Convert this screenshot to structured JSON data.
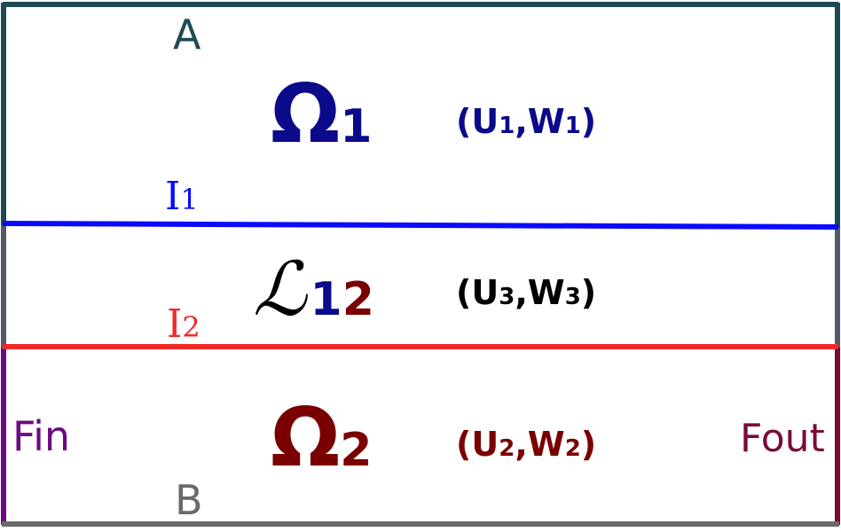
{
  "labels": {
    "top_boundary": "A",
    "bottom_boundary": "B",
    "inflow": "Fin",
    "outflow": "Fout",
    "interface_1": {
      "base": "I",
      "sub": "1"
    },
    "interface_2": {
      "base": "I",
      "sub": "2"
    }
  },
  "regions": {
    "omega1": {
      "symbol": "Ω",
      "sub": "1",
      "pair": {
        "open": "(",
        "u": "U",
        "u_sub": "1",
        "sep": ",",
        "w": "W",
        "w_sub": "1",
        "close": ")"
      }
    },
    "layer12": {
      "symbol": "ℒ",
      "sub_a": "1",
      "sub_b": "2",
      "pair": {
        "open": "(",
        "u": "U",
        "u_sub": "3",
        "sep": ",",
        "w": "W",
        "w_sub": "3",
        "close": ")"
      }
    },
    "omega2": {
      "symbol": "Ω",
      "sub": "2",
      "pair": {
        "open": "(",
        "u": "U",
        "u_sub": "2",
        "sep": ",",
        "w": "W",
        "w_sub": "2",
        "close": ")"
      }
    }
  },
  "colors": {
    "top_border": "#1e4a55",
    "mid_border": "#555b66",
    "bottom_border": "#6a6a6a",
    "interface_1": "#0a0aff",
    "interface_2": "#f02828",
    "fin_side": "#6a0a80",
    "fout_side": "#7a0a2a",
    "omega1": "#0a0a8a",
    "omega2": "#7a0000",
    "layer": "#000000",
    "label_a": "#1e4a55",
    "label_b": "#6a6a6a",
    "fin": "#6a0a80",
    "fout": "#7a0a3a"
  }
}
